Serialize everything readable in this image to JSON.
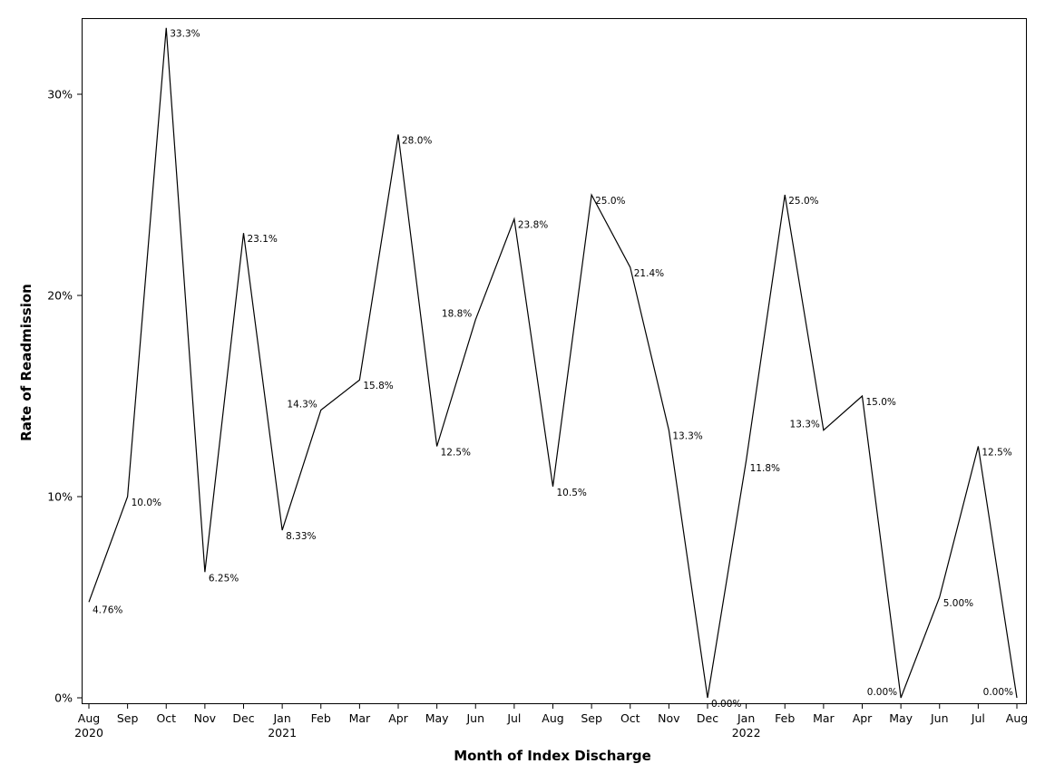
{
  "chart_data": {
    "type": "line",
    "title": "",
    "xlabel": "Month of Index Discharge",
    "ylabel": "Rate of Readmission",
    "ylim": [
      0,
      0.333
    ],
    "y_ticks": [
      0,
      0.1,
      0.2,
      0.3
    ],
    "y_tick_labels": [
      "0%",
      "10%",
      "20%",
      "30%"
    ],
    "grid": false,
    "legend": "none",
    "x": [
      "Aug 2020",
      "Sep 2020",
      "Oct 2020",
      "Nov 2020",
      "Dec 2020",
      "Jan 2021",
      "Feb 2021",
      "Mar 2021",
      "Apr 2021",
      "May 2021",
      "Jun 2021",
      "Jul 2021",
      "Aug 2021",
      "Sep 2021",
      "Oct 2021",
      "Nov 2021",
      "Dec 2021",
      "Jan 2022",
      "Feb 2022",
      "Mar 2022",
      "Apr 2022",
      "May 2022",
      "Jun 2022",
      "Jul 2022",
      "Aug 2022"
    ],
    "x_tick_months": [
      "Aug",
      "Sep",
      "Oct",
      "Nov",
      "Dec",
      "Jan",
      "Feb",
      "Mar",
      "Apr",
      "May",
      "Jun",
      "Jul",
      "Aug",
      "Sep",
      "Oct",
      "Nov",
      "Dec",
      "Jan",
      "Feb",
      "Mar",
      "Apr",
      "May",
      "Jun",
      "Jul",
      "Aug"
    ],
    "x_tick_years": [
      "2020",
      "",
      "",
      "",
      "",
      "2021",
      "",
      "",
      "",
      "",
      "",
      "",
      "",
      "",
      "",
      "",
      "",
      "2022",
      "",
      "",
      "",
      "",
      "",
      "",
      ""
    ],
    "values": [
      0.0476,
      0.1,
      0.333,
      0.0625,
      0.231,
      0.0833,
      0.143,
      0.158,
      0.28,
      0.125,
      0.188,
      0.238,
      0.105,
      0.25,
      0.214,
      0.133,
      0.0,
      0.118,
      0.25,
      0.133,
      0.15,
      0.0,
      0.05,
      0.125,
      0.0
    ],
    "data_labels": [
      "4.76%",
      "10.0%",
      "33.3%",
      "6.25%",
      "23.1%",
      "8.33%",
      "14.3%",
      "15.8%",
      "28.0%",
      "12.5%",
      "18.8%",
      "23.8%",
      "10.5%",
      "25.0%",
      "21.4%",
      "13.3%",
      "0.00%",
      "11.8%",
      "25.0%",
      "13.3%",
      "15.0%",
      "0.00%",
      "5.00%",
      "12.5%",
      "0.00%"
    ],
    "label_sides": [
      "below",
      "right",
      "right",
      "right",
      "right",
      "right",
      "left",
      "right",
      "right",
      "right",
      "left",
      "right",
      "right",
      "right",
      "right",
      "right",
      "right",
      "below",
      "right",
      "left",
      "right",
      "left",
      "right",
      "right",
      "left"
    ],
    "line_color": "#000000"
  }
}
